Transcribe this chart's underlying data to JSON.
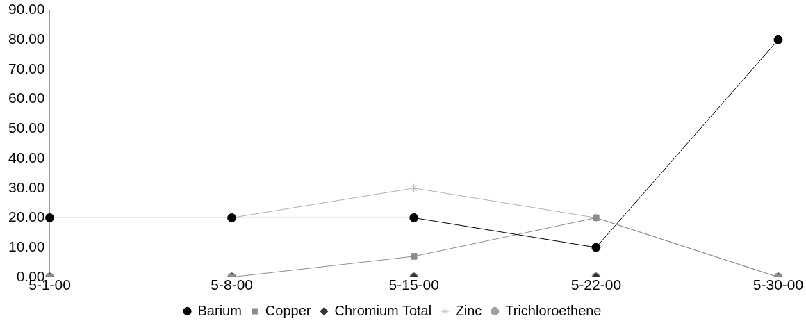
{
  "chart_data": {
    "type": "line",
    "categories": [
      "5-1-00",
      "5-8-00",
      "5-15-00",
      "5-22-00",
      "5-30-00"
    ],
    "series": [
      {
        "name": "Barium",
        "color": "#000000",
        "marker": "circle",
        "values": [
          20,
          20,
          20,
          10,
          80
        ]
      },
      {
        "name": "Copper",
        "color": "#8c8c8c",
        "marker": "square",
        "values": [
          0,
          0,
          7,
          20,
          0
        ]
      },
      {
        "name": "Chromium Total",
        "color": "#333333",
        "marker": "diamond",
        "values": [
          0,
          0,
          0,
          0,
          0
        ]
      },
      {
        "name": "Zinc",
        "color": "#b0b0b0",
        "marker": "cross",
        "values": [
          20,
          20,
          30,
          20,
          0
        ]
      },
      {
        "name": "Trichloroethene",
        "color": "#a0a0a0",
        "marker": "circle",
        "values": [
          0,
          0,
          0,
          0,
          0
        ]
      }
    ],
    "ylim": [
      0,
      90
    ],
    "yticks": [
      {
        "value": 0,
        "label": "0.00"
      },
      {
        "value": 10,
        "label": "10.00"
      },
      {
        "value": 20,
        "label": "20.00"
      },
      {
        "value": 30,
        "label": "30.00"
      },
      {
        "value": 40,
        "label": "40.00"
      },
      {
        "value": 50,
        "label": "50.00"
      },
      {
        "value": 60,
        "label": "60.00"
      },
      {
        "value": 70,
        "label": "70.00"
      },
      {
        "value": 80,
        "label": "80.00"
      },
      {
        "value": 90,
        "label": "90.00"
      }
    ],
    "grid": false,
    "legend": "bottom"
  }
}
